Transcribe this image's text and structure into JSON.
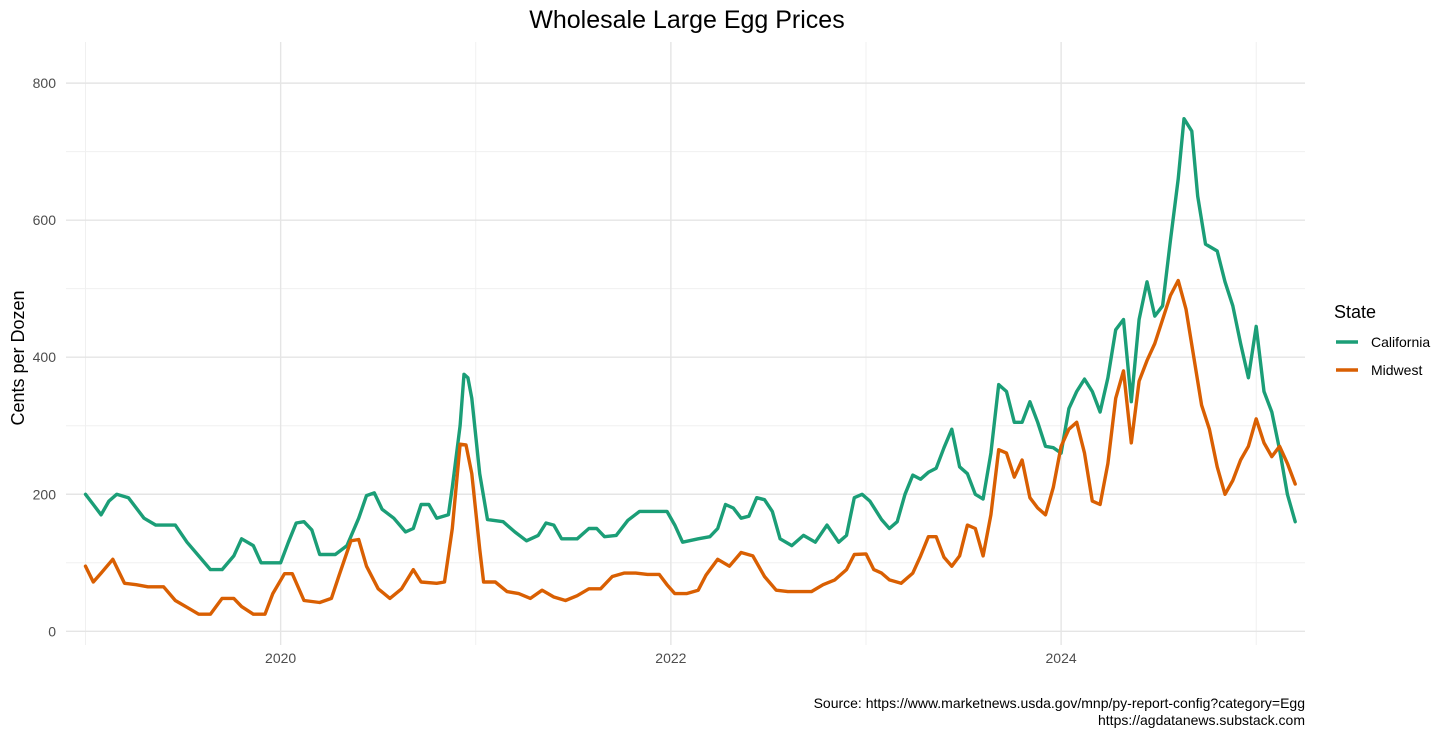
{
  "chart_data": {
    "type": "line",
    "title": "Wholesale Large Egg Prices",
    "xlabel": "",
    "ylabel": "Cents per Dozen",
    "xlim": [
      2018.9,
      2025.25
    ],
    "ylim": [
      -20,
      860
    ],
    "x_ticks": [
      2020,
      2022,
      2024
    ],
    "x_tick_labels": [
      "2020",
      "2022",
      "2024"
    ],
    "y_ticks": [
      0,
      200,
      400,
      600,
      800
    ],
    "y_tick_labels": [
      "0",
      "200",
      "400",
      "600",
      "800"
    ],
    "grid": true,
    "legend": {
      "title": "State",
      "position": "right"
    },
    "series": [
      {
        "name": "California",
        "color": "#1b9e77",
        "points": [
          [
            2019.0,
            200
          ],
          [
            2019.04,
            185
          ],
          [
            2019.08,
            170
          ],
          [
            2019.12,
            190
          ],
          [
            2019.16,
            200
          ],
          [
            2019.22,
            195
          ],
          [
            2019.3,
            165
          ],
          [
            2019.36,
            155
          ],
          [
            2019.46,
            155
          ],
          [
            2019.52,
            130
          ],
          [
            2019.58,
            110
          ],
          [
            2019.64,
            90
          ],
          [
            2019.7,
            90
          ],
          [
            2019.76,
            110
          ],
          [
            2019.8,
            135
          ],
          [
            2019.86,
            125
          ],
          [
            2019.9,
            100
          ],
          [
            2019.96,
            100
          ],
          [
            2020.0,
            100
          ],
          [
            2020.04,
            130
          ],
          [
            2020.08,
            158
          ],
          [
            2020.12,
            160
          ],
          [
            2020.16,
            148
          ],
          [
            2020.2,
            112
          ],
          [
            2020.28,
            112
          ],
          [
            2020.34,
            125
          ],
          [
            2020.4,
            165
          ],
          [
            2020.44,
            198
          ],
          [
            2020.48,
            202
          ],
          [
            2020.52,
            178
          ],
          [
            2020.58,
            165
          ],
          [
            2020.64,
            145
          ],
          [
            2020.68,
            150
          ],
          [
            2020.72,
            185
          ],
          [
            2020.76,
            185
          ],
          [
            2020.8,
            165
          ],
          [
            2020.86,
            170
          ],
          [
            2020.88,
            210
          ],
          [
            2020.92,
            300
          ],
          [
            2020.94,
            375
          ],
          [
            2020.96,
            370
          ],
          [
            2020.98,
            340
          ],
          [
            2021.02,
            230
          ],
          [
            2021.06,
            163
          ],
          [
            2021.14,
            160
          ],
          [
            2021.2,
            145
          ],
          [
            2021.26,
            132
          ],
          [
            2021.32,
            140
          ],
          [
            2021.36,
            158
          ],
          [
            2021.4,
            155
          ],
          [
            2021.44,
            135
          ],
          [
            2021.52,
            135
          ],
          [
            2021.58,
            150
          ],
          [
            2021.62,
            150
          ],
          [
            2021.66,
            138
          ],
          [
            2021.72,
            140
          ],
          [
            2021.78,
            162
          ],
          [
            2021.84,
            175
          ],
          [
            2021.92,
            175
          ],
          [
            2021.98,
            175
          ],
          [
            2022.02,
            155
          ],
          [
            2022.06,
            130
          ],
          [
            2022.14,
            135
          ],
          [
            2022.2,
            138
          ],
          [
            2022.24,
            150
          ],
          [
            2022.28,
            185
          ],
          [
            2022.32,
            180
          ],
          [
            2022.36,
            165
          ],
          [
            2022.4,
            168
          ],
          [
            2022.44,
            195
          ],
          [
            2022.48,
            192
          ],
          [
            2022.52,
            175
          ],
          [
            2022.56,
            135
          ],
          [
            2022.62,
            125
          ],
          [
            2022.68,
            140
          ],
          [
            2022.74,
            130
          ],
          [
            2022.8,
            155
          ],
          [
            2022.86,
            130
          ],
          [
            2022.9,
            140
          ],
          [
            2022.94,
            195
          ],
          [
            2022.98,
            200
          ],
          [
            2023.02,
            190
          ],
          [
            2023.08,
            163
          ],
          [
            2023.12,
            150
          ],
          [
            2023.16,
            160
          ],
          [
            2023.2,
            200
          ],
          [
            2023.24,
            228
          ],
          [
            2023.28,
            222
          ],
          [
            2023.32,
            232
          ],
          [
            2023.36,
            238
          ],
          [
            2023.4,
            268
          ],
          [
            2023.44,
            295
          ],
          [
            2023.48,
            240
          ],
          [
            2023.52,
            230
          ],
          [
            2023.56,
            200
          ],
          [
            2023.6,
            193
          ],
          [
            2023.64,
            260
          ],
          [
            2023.68,
            360
          ],
          [
            2023.72,
            350
          ],
          [
            2023.76,
            305
          ],
          [
            2023.8,
            305
          ],
          [
            2023.84,
            335
          ],
          [
            2023.88,
            305
          ],
          [
            2023.92,
            270
          ],
          [
            2023.96,
            268
          ],
          [
            2024.0,
            260
          ],
          [
            2024.04,
            325
          ],
          [
            2024.08,
            350
          ],
          [
            2024.12,
            368
          ],
          [
            2024.16,
            350
          ],
          [
            2024.2,
            320
          ],
          [
            2024.24,
            370
          ],
          [
            2024.28,
            440
          ],
          [
            2024.32,
            455
          ],
          [
            2024.36,
            335
          ],
          [
            2024.4,
            455
          ],
          [
            2024.44,
            510
          ],
          [
            2024.48,
            460
          ],
          [
            2024.52,
            475
          ],
          [
            2024.56,
            570
          ],
          [
            2024.6,
            660
          ],
          [
            2024.63,
            748
          ],
          [
            2024.67,
            730
          ],
          [
            2024.7,
            635
          ],
          [
            2024.74,
            565
          ],
          [
            2024.8,
            555
          ],
          [
            2024.84,
            510
          ],
          [
            2024.88,
            475
          ],
          [
            2024.92,
            420
          ],
          [
            2024.96,
            370
          ],
          [
            2025.0,
            445
          ],
          [
            2025.04,
            350
          ],
          [
            2025.08,
            320
          ],
          [
            2025.12,
            265
          ],
          [
            2025.16,
            200
          ],
          [
            2025.2,
            160
          ]
        ]
      },
      {
        "name": "Midwest",
        "color": "#d95f02",
        "points": [
          [
            2019.0,
            95
          ],
          [
            2019.04,
            72
          ],
          [
            2019.08,
            85
          ],
          [
            2019.14,
            105
          ],
          [
            2019.2,
            70
          ],
          [
            2019.26,
            68
          ],
          [
            2019.32,
            65
          ],
          [
            2019.4,
            65
          ],
          [
            2019.46,
            45
          ],
          [
            2019.52,
            35
          ],
          [
            2019.58,
            25
          ],
          [
            2019.64,
            25
          ],
          [
            2019.7,
            48
          ],
          [
            2019.76,
            48
          ],
          [
            2019.8,
            36
          ],
          [
            2019.86,
            25
          ],
          [
            2019.92,
            25
          ],
          [
            2019.96,
            55
          ],
          [
            2020.02,
            84
          ],
          [
            2020.06,
            84
          ],
          [
            2020.12,
            45
          ],
          [
            2020.2,
            42
          ],
          [
            2020.26,
            48
          ],
          [
            2020.3,
            82
          ],
          [
            2020.36,
            132
          ],
          [
            2020.4,
            134
          ],
          [
            2020.44,
            95
          ],
          [
            2020.5,
            62
          ],
          [
            2020.56,
            48
          ],
          [
            2020.62,
            62
          ],
          [
            2020.68,
            90
          ],
          [
            2020.72,
            72
          ],
          [
            2020.8,
            70
          ],
          [
            2020.84,
            72
          ],
          [
            2020.88,
            150
          ],
          [
            2020.92,
            273
          ],
          [
            2020.95,
            272
          ],
          [
            2020.98,
            230
          ],
          [
            2021.02,
            120
          ],
          [
            2021.04,
            72
          ],
          [
            2021.1,
            72
          ],
          [
            2021.16,
            58
          ],
          [
            2021.22,
            55
          ],
          [
            2021.28,
            48
          ],
          [
            2021.34,
            60
          ],
          [
            2021.4,
            50
          ],
          [
            2021.46,
            45
          ],
          [
            2021.52,
            52
          ],
          [
            2021.58,
            62
          ],
          [
            2021.64,
            62
          ],
          [
            2021.7,
            80
          ],
          [
            2021.76,
            85
          ],
          [
            2021.82,
            85
          ],
          [
            2021.88,
            83
          ],
          [
            2021.94,
            83
          ],
          [
            2021.98,
            68
          ],
          [
            2022.02,
            55
          ],
          [
            2022.08,
            55
          ],
          [
            2022.14,
            60
          ],
          [
            2022.18,
            82
          ],
          [
            2022.24,
            105
          ],
          [
            2022.3,
            95
          ],
          [
            2022.36,
            115
          ],
          [
            2022.42,
            110
          ],
          [
            2022.48,
            80
          ],
          [
            2022.54,
            60
          ],
          [
            2022.6,
            58
          ],
          [
            2022.66,
            58
          ],
          [
            2022.72,
            58
          ],
          [
            2022.78,
            68
          ],
          [
            2022.84,
            75
          ],
          [
            2022.9,
            90
          ],
          [
            2022.94,
            112
          ],
          [
            2023.0,
            113
          ],
          [
            2023.04,
            90
          ],
          [
            2023.08,
            85
          ],
          [
            2023.12,
            75
          ],
          [
            2023.18,
            70
          ],
          [
            2023.24,
            85
          ],
          [
            2023.28,
            110
          ],
          [
            2023.32,
            138
          ],
          [
            2023.36,
            138
          ],
          [
            2023.4,
            108
          ],
          [
            2023.44,
            95
          ],
          [
            2023.48,
            110
          ],
          [
            2023.52,
            155
          ],
          [
            2023.56,
            150
          ],
          [
            2023.6,
            110
          ],
          [
            2023.64,
            170
          ],
          [
            2023.68,
            265
          ],
          [
            2023.72,
            260
          ],
          [
            2023.76,
            225
          ],
          [
            2023.8,
            250
          ],
          [
            2023.84,
            195
          ],
          [
            2023.88,
            180
          ],
          [
            2023.92,
            170
          ],
          [
            2023.96,
            210
          ],
          [
            2024.0,
            270
          ],
          [
            2024.04,
            295
          ],
          [
            2024.08,
            305
          ],
          [
            2024.12,
            260
          ],
          [
            2024.16,
            190
          ],
          [
            2024.2,
            185
          ],
          [
            2024.24,
            245
          ],
          [
            2024.28,
            340
          ],
          [
            2024.32,
            380
          ],
          [
            2024.36,
            275
          ],
          [
            2024.4,
            365
          ],
          [
            2024.44,
            395
          ],
          [
            2024.48,
            420
          ],
          [
            2024.52,
            455
          ],
          [
            2024.56,
            490
          ],
          [
            2024.6,
            512
          ],
          [
            2024.64,
            470
          ],
          [
            2024.68,
            400
          ],
          [
            2024.72,
            330
          ],
          [
            2024.76,
            295
          ],
          [
            2024.8,
            240
          ],
          [
            2024.84,
            200
          ],
          [
            2024.88,
            220
          ],
          [
            2024.92,
            250
          ],
          [
            2024.96,
            270
          ],
          [
            2025.0,
            310
          ],
          [
            2025.04,
            275
          ],
          [
            2025.08,
            255
          ],
          [
            2025.12,
            270
          ],
          [
            2025.16,
            245
          ],
          [
            2025.2,
            215
          ]
        ]
      }
    ]
  },
  "caption": {
    "line1": "Source: https://www.marketnews.usda.gov/mnp/py-report-config?category=Egg",
    "line2": "https://agdatanews.substack.com"
  }
}
